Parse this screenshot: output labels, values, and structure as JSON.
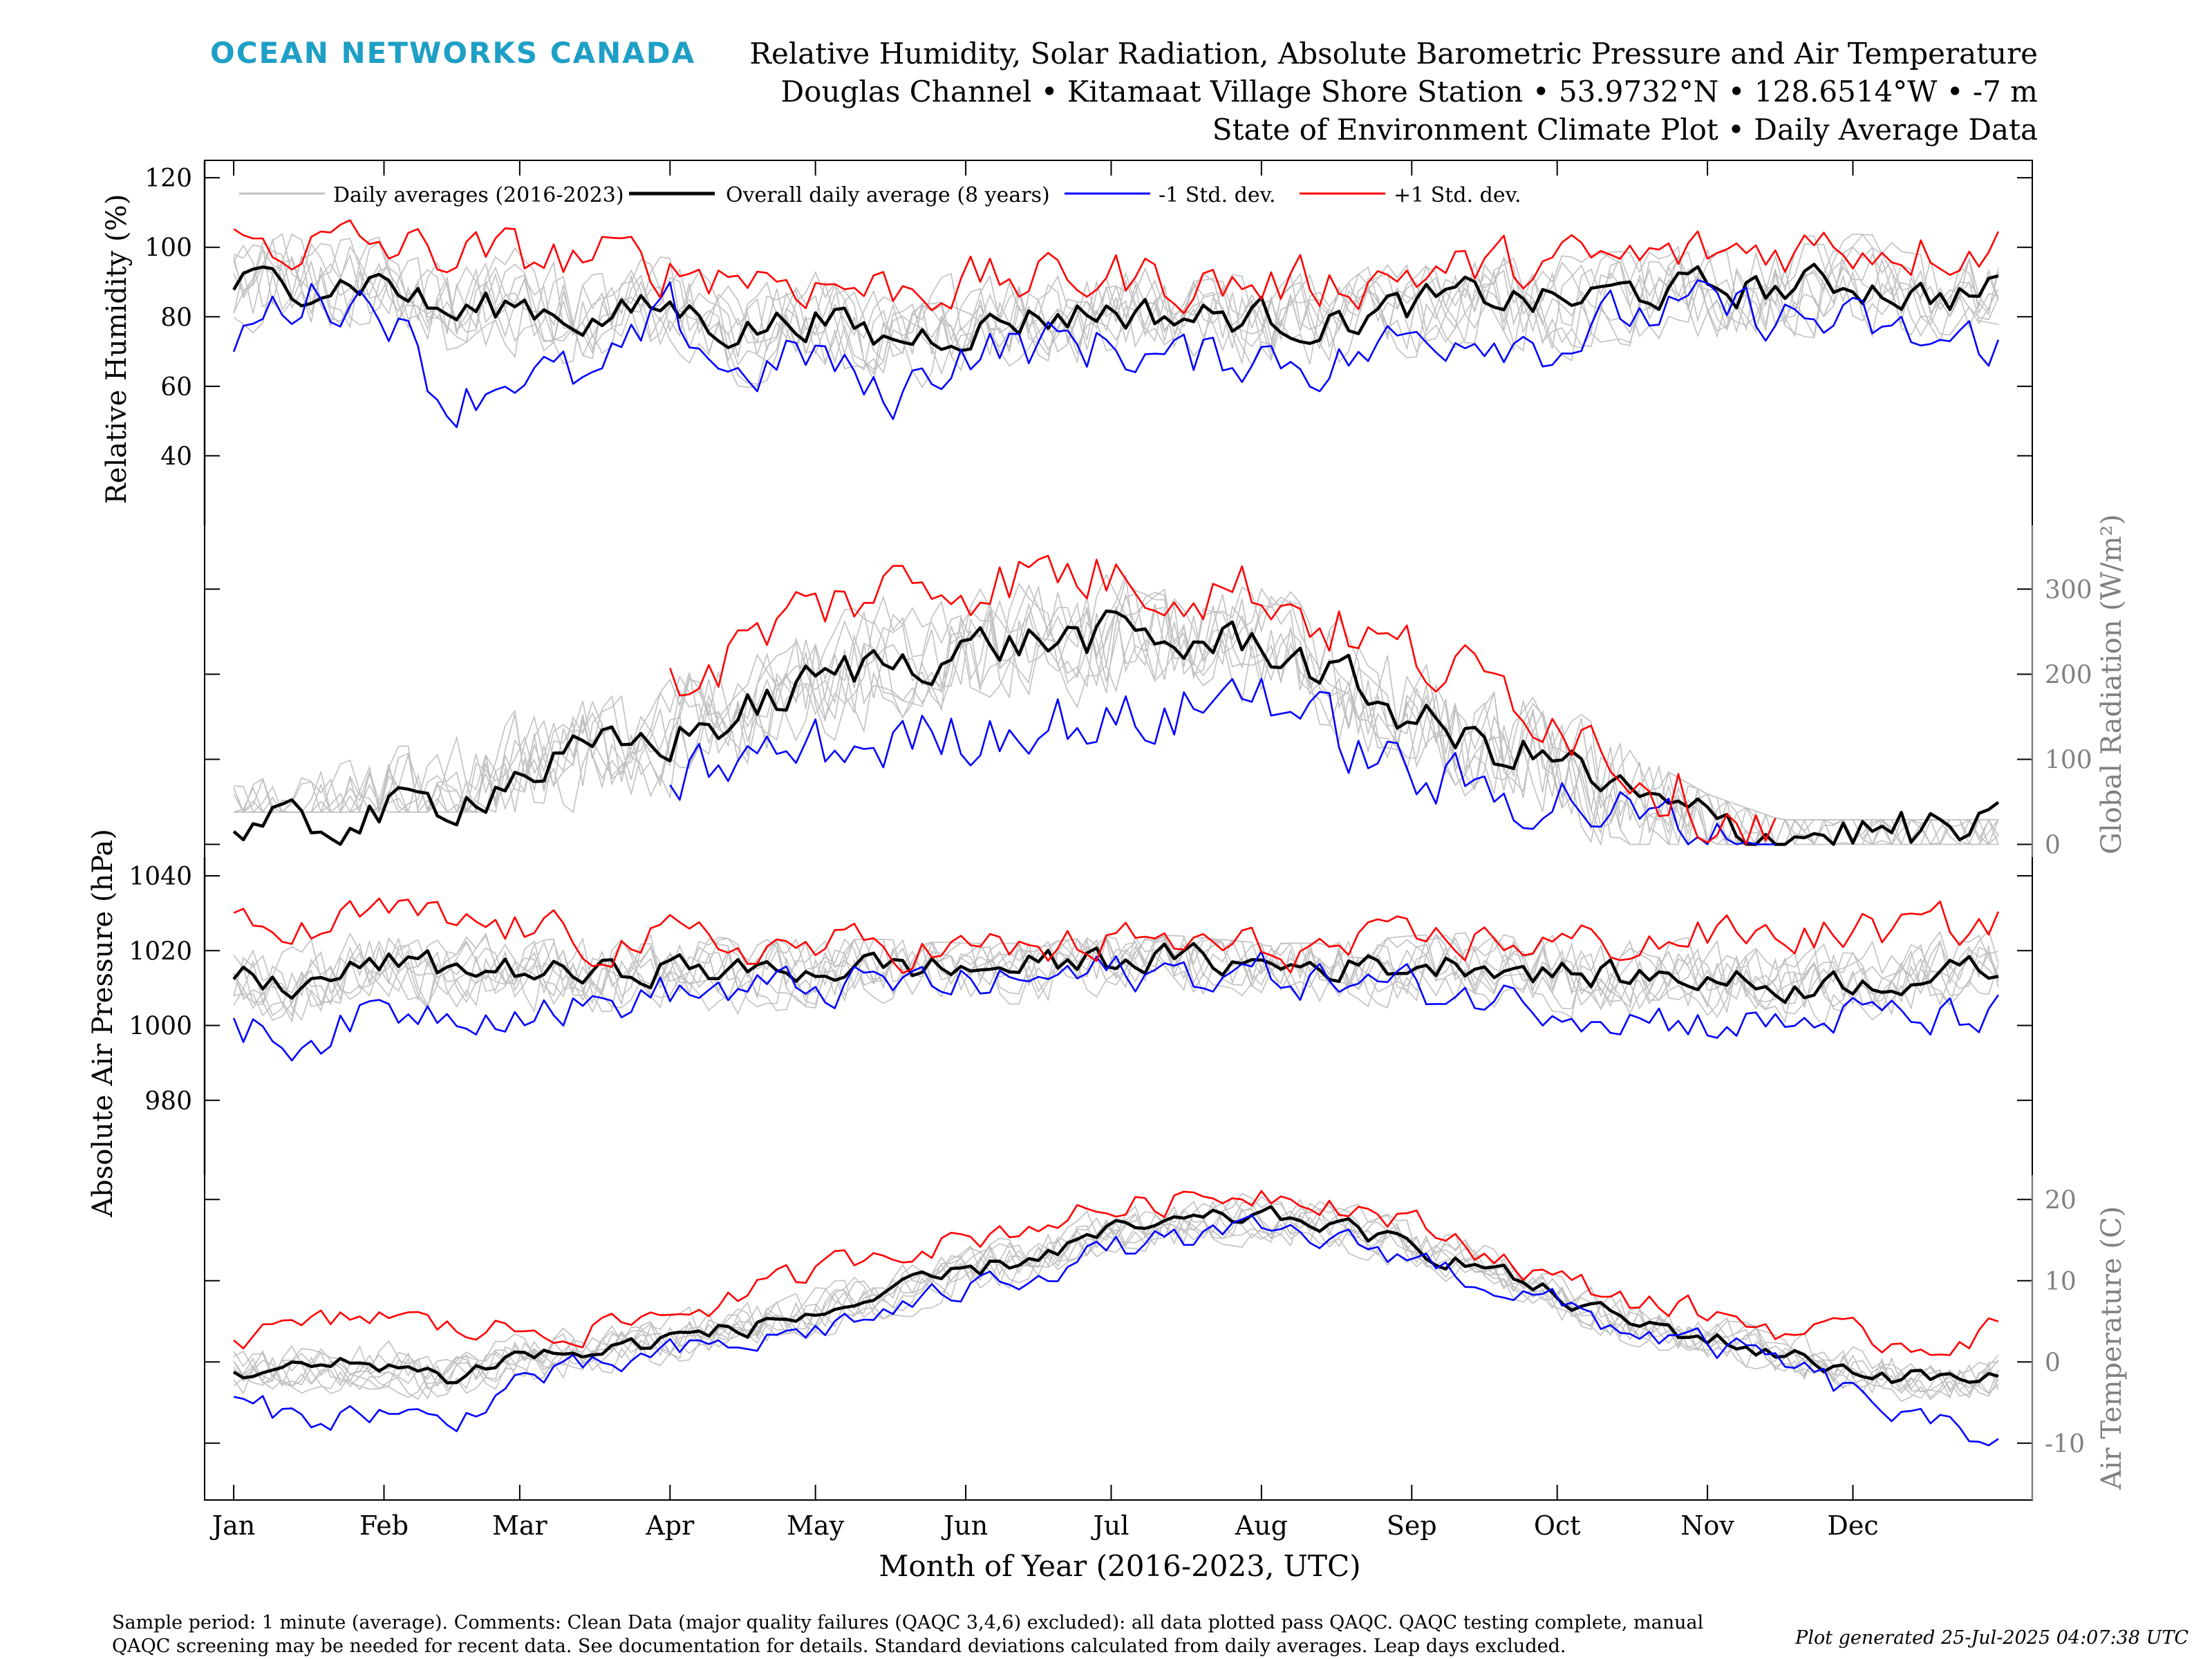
{
  "header": {
    "brand": "OCEAN NETWORKS CANADA",
    "title_lines": [
      "Relative Humidity, Solar Radiation, Absolute Barometric Pressure and Air Temperature",
      "Douglas Channel • Kitamaat Village Shore Station • 53.9732°N • 128.6514°W • -7 m",
      "State of Environment Climate Plot • Daily Average Data"
    ]
  },
  "legend": {
    "placement": "top-left, inside top panel",
    "entries": [
      {
        "label": "Daily averages (2016-2023)",
        "color": "#c0c0c0"
      },
      {
        "label": "Overall daily average (8 years)",
        "color": "#000000"
      },
      {
        "label": "-1 Std. dev.",
        "color": "#0000ff"
      },
      {
        "label": "+1 Std. dev.",
        "color": "#ff0000"
      }
    ]
  },
  "x_axis": {
    "label": "Month of Year (2016-2023, UTC)",
    "ticks": [
      "Jan",
      "Feb",
      "Mar",
      "Apr",
      "May",
      "Jun",
      "Jul",
      "Aug",
      "Sep",
      "Oct",
      "Nov",
      "Dec"
    ],
    "tick_days": [
      1,
      32,
      60,
      91,
      121,
      152,
      182,
      213,
      244,
      274,
      305,
      335
    ],
    "range_days": [
      -5,
      372
    ]
  },
  "colors": {
    "years": "#c0c0c0",
    "mean": "#000000",
    "minus": "#0000ff",
    "plus": "#ff0000",
    "brand": "#1e9fc6",
    "axis_gray": "#808080"
  },
  "footer": {
    "comment_lines": [
      "Sample period: 1 minute (average). Comments: Clean Data (major quality failures (QAQC 3,4,6) excluded): all data plotted pass QAQC. QAQC testing complete, manual",
      "QAQC screening may be needed for recent data. See documentation for details. Standard deviations calculated from daily averages. Leap days excluded."
    ],
    "generated": "Plot generated 25-Jul-2025 04:07:38 UTC"
  },
  "chart_data": [
    {
      "type": "line",
      "panel": "humidity",
      "ylabel": "Relative Humidity (%)",
      "axis_side": "left",
      "ylim": [
        20,
        125
      ],
      "yticks": [
        40,
        60,
        80,
        100,
        120
      ],
      "series": [
        {
          "name": "Overall daily average (8 years)",
          "role": "mean",
          "days": [
            1,
            15,
            32,
            45,
            60,
            75,
            91,
            105,
            121,
            135,
            152,
            166,
            182,
            196,
            213,
            227,
            244,
            258,
            274,
            288,
            305,
            320,
            335,
            350,
            365
          ],
          "values": [
            89,
            90,
            91,
            80,
            84,
            79,
            83,
            76,
            80,
            73,
            77,
            80,
            82,
            80,
            80,
            78,
            83,
            86,
            84,
            87,
            88,
            88,
            90,
            86,
            87
          ]
        },
        {
          "name": "-1 Std. dev.",
          "role": "minus",
          "days": [
            1,
            15,
            32,
            45,
            60,
            75,
            91,
            105,
            121,
            135,
            152,
            166,
            182,
            196,
            213,
            227,
            244,
            258,
            274,
            288,
            305,
            320,
            335,
            350,
            365
          ],
          "values": [
            75,
            86,
            85,
            55,
            65,
            60,
            80,
            63,
            70,
            55,
            71,
            72,
            72,
            67,
            70,
            66,
            74,
            77,
            72,
            80,
            82,
            80,
            77,
            72,
            73
          ]
        },
        {
          "name": "+1 Std. dev.",
          "role": "plus",
          "days": [
            1,
            15,
            32,
            45,
            60,
            75,
            91,
            105,
            121,
            135,
            152,
            166,
            182,
            196,
            213,
            227,
            244,
            258,
            274,
            288,
            305,
            320,
            335,
            350,
            365
          ],
          "values": [
            101,
            101,
            100,
            98,
            97,
            97,
            94,
            93,
            90,
            88,
            90,
            90,
            92,
            90,
            89,
            90,
            93,
            94,
            95,
            96,
            98,
            100,
            101,
            100,
            101
          ]
        }
      ]
    },
    {
      "type": "line",
      "panel": "radiation",
      "ylabel": "Global Radiation (W/m²)",
      "axis_side": "right",
      "ylim": [
        -15,
        375
      ],
      "yticks": [
        0,
        100,
        200,
        300
      ],
      "series": [
        {
          "name": "Overall daily average (8 years)",
          "role": "mean",
          "days": [
            1,
            15,
            32,
            45,
            60,
            75,
            91,
            105,
            121,
            135,
            152,
            166,
            182,
            196,
            213,
            227,
            244,
            258,
            274,
            288,
            305,
            320,
            335,
            350,
            365
          ],
          "values": [
            15,
            18,
            35,
            50,
            85,
            105,
            125,
            150,
            190,
            215,
            230,
            240,
            245,
            235,
            240,
            200,
            150,
            115,
            100,
            55,
            25,
            12,
            15,
            14,
            15
          ]
        },
        {
          "name": "-1 Std. dev.",
          "role": "minus",
          "days": [
            91,
            105,
            121,
            135,
            152,
            166,
            182,
            196,
            213,
            227,
            244,
            258,
            274,
            288,
            305,
            320
          ],
          "values": [
            80,
            95,
            110,
            120,
            130,
            150,
            140,
            155,
            190,
            130,
            80,
            60,
            60,
            30,
            10,
            5
          ]
        },
        {
          "name": "+1 Std. dev.",
          "role": "plus",
          "days": [
            91,
            105,
            121,
            135,
            152,
            166,
            182,
            196,
            213,
            227,
            244,
            258,
            274,
            288,
            305,
            320
          ],
          "values": [
            180,
            230,
            280,
            300,
            310,
            320,
            315,
            310,
            300,
            260,
            220,
            190,
            160,
            100,
            45,
            15
          ]
        }
      ]
    },
    {
      "type": "line",
      "panel": "pressure",
      "ylabel": "Absolute Air Pressure (hPa)",
      "axis_side": "left",
      "ylim": [
        960,
        1045
      ],
      "yticks": [
        980,
        1000,
        1020,
        1040
      ],
      "series": [
        {
          "name": "Overall daily average (8 years)",
          "role": "mean",
          "days": [
            1,
            15,
            32,
            45,
            60,
            75,
            91,
            105,
            121,
            135,
            152,
            166,
            182,
            196,
            213,
            227,
            244,
            258,
            274,
            288,
            305,
            320,
            335,
            350,
            365
          ],
          "values": [
            1013,
            1010,
            1017,
            1015,
            1015,
            1013,
            1016,
            1014,
            1015,
            1016,
            1015,
            1016,
            1018,
            1018,
            1016,
            1016,
            1016,
            1017,
            1014,
            1013,
            1013,
            1010,
            1012,
            1013,
            1015
          ]
        },
        {
          "name": "-1 Std. dev.",
          "role": "minus",
          "days": [
            1,
            15,
            32,
            45,
            60,
            75,
            91,
            105,
            121,
            135,
            152,
            166,
            182,
            196,
            213,
            227,
            244,
            258,
            274,
            288,
            305,
            320,
            335,
            350,
            365
          ],
          "values": [
            1000,
            996,
            1004,
            1004,
            1005,
            1005,
            1009,
            1009,
            1010,
            1011,
            1011,
            1012,
            1014,
            1014,
            1014,
            1012,
            1010,
            1008,
            1006,
            1003,
            1001,
            1000,
            1003,
            1001,
            1003
          ]
        },
        {
          "name": "+1 Std. dev.",
          "role": "plus",
          "days": [
            1,
            15,
            32,
            45,
            60,
            75,
            91,
            105,
            121,
            135,
            152,
            166,
            182,
            196,
            213,
            227,
            244,
            258,
            274,
            288,
            305,
            320,
            335,
            350,
            365
          ],
          "values": [
            1026,
            1024,
            1030,
            1027,
            1026,
            1022,
            1023,
            1021,
            1021,
            1021,
            1020,
            1020,
            1022,
            1022,
            1020,
            1020,
            1022,
            1023,
            1022,
            1022,
            1024,
            1024,
            1025,
            1026,
            1027
          ]
        }
      ]
    },
    {
      "type": "line",
      "panel": "temperature",
      "ylabel": "Air Temperature (C)",
      "axis_side": "right",
      "ylim": [
        -17,
        23
      ],
      "yticks": [
        -10,
        0,
        10,
        20
      ],
      "series": [
        {
          "name": "Overall daily average (8 years)",
          "role": "mean",
          "days": [
            1,
            15,
            32,
            45,
            60,
            75,
            91,
            105,
            121,
            135,
            152,
            166,
            182,
            196,
            213,
            227,
            244,
            258,
            274,
            288,
            305,
            320,
            335,
            350,
            365
          ],
          "values": [
            -1,
            -1,
            0,
            -2,
            1,
            1,
            3,
            4,
            6,
            8,
            11,
            13,
            16,
            17,
            18,
            17,
            14,
            12,
            8,
            5,
            3,
            1,
            -1,
            -2,
            -2
          ]
        },
        {
          "name": "-1 Std. dev.",
          "role": "minus",
          "days": [
            1,
            15,
            32,
            45,
            60,
            75,
            91,
            105,
            121,
            135,
            152,
            166,
            182,
            196,
            213,
            227,
            244,
            258,
            274,
            288,
            305,
            320,
            335,
            350,
            365
          ],
          "values": [
            -5,
            -7,
            -6,
            -8,
            -2,
            -1,
            1,
            2,
            4,
            6,
            9,
            11,
            14,
            15,
            16,
            15,
            13,
            10,
            7,
            4,
            2,
            0,
            -4,
            -8,
            -9
          ]
        },
        {
          "name": "+1 Std. dev.",
          "role": "plus",
          "days": [
            1,
            15,
            32,
            45,
            60,
            75,
            91,
            105,
            121,
            135,
            152,
            166,
            182,
            196,
            213,
            227,
            244,
            258,
            274,
            288,
            305,
            320,
            335,
            350,
            365
          ],
          "values": [
            3,
            4,
            6,
            4,
            4,
            4,
            6,
            8,
            11,
            14,
            15,
            17,
            19,
            20,
            21,
            20,
            17,
            14,
            10,
            8,
            6,
            4,
            3,
            2,
            4
          ]
        }
      ]
    }
  ]
}
